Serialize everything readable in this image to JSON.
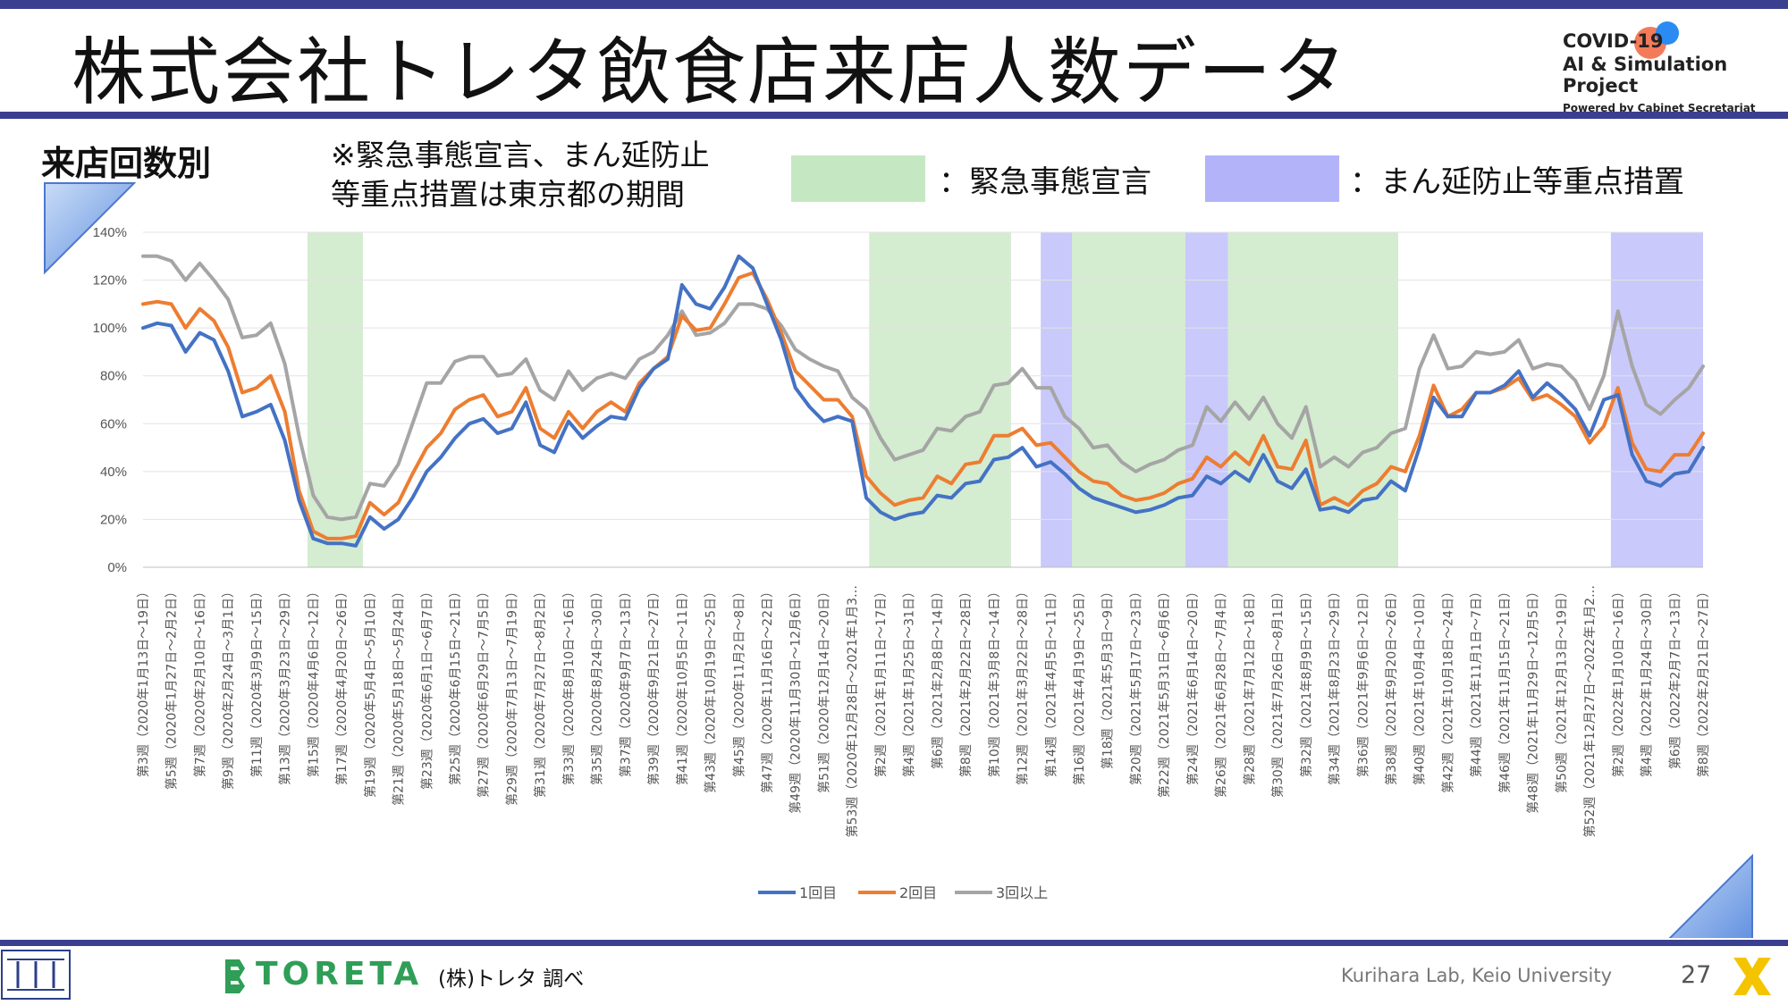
{
  "header": {
    "title": "株式会社トレタ飲食店来店人数データ",
    "badge_line1": "COVID-19",
    "badge_line2": "AI & Simulation Project",
    "badge_line3": "Powered by Cabinet Secretariat"
  },
  "section": {
    "label": "来店回数別",
    "note": "※緊急事態宣言、まん延防止\n等重点措置は東京都の期間",
    "legend_emergency": "：緊急事態宣言",
    "legend_manbo": "：まん延防止等重点措置"
  },
  "colors": {
    "accent": "#3b3f8f",
    "emergency": "#d4ecd0",
    "manbo": "#c9c9fb",
    "series1": "#4472c4",
    "series2": "#ed7d31",
    "series3": "#a5a5a5"
  },
  "chart_data": {
    "type": "line",
    "ylim": [
      0,
      1.4
    ],
    "yticks": [
      "0%",
      "20%",
      "40%",
      "60%",
      "80%",
      "100%",
      "120%",
      "140%"
    ],
    "x_labels": [
      "第3週（2020年1月13日～19日）",
      "第5週（2020年1月27日～2月2日）",
      "第7週（2020年2月10日～16日）",
      "第9週（2020年2月24日～3月1日）",
      "第11週（2020年3月9日～15日）",
      "第13週（2020年3月23日～29日）",
      "第15週（2020年4月6日～12日）",
      "第17週（2020年4月20日～26日）",
      "第19週（2020年5月4日～5月10日）",
      "第21週（2020年5月18日～5月24日）",
      "第23週（2020年6月1日～6月7日）",
      "第25週（2020年6月15日～21日）",
      "第27週（2020年6月29日～7月5日）",
      "第29週（2020年7月13日～7月19日）",
      "第31週（2020年7月27日～8月2日）",
      "第33週（2020年8月10日～16日）",
      "第35週（2020年8月24日～30日）",
      "第37週（2020年9月7日～13日）",
      "第39週（2020年9月21日～27日）",
      "第41週（2020年10月5日～11日）",
      "第43週（2020年10月19日～25日）",
      "第45週（2020年11月2日～8日）",
      "第47週（2020年11月16日～22日）",
      "第49週（2020年11月30日～12月6日）",
      "第51週（2020年12月14日～20日）",
      "第53週（2020年12月28日～2021年1月3…",
      "第2週（2021年1月11日～17日）",
      "第4週（2021年1月25日～31日）",
      "第6週（2021年2月8日～14日）",
      "第8週（2021年2月22日～28日）",
      "第10週（2021年3月8日～14日）",
      "第12週（2021年3月22日～28日）",
      "第14週（2021年4月5日～11日）",
      "第16週（2021年4月19日～25日）",
      "第18週（2021年5月3日～9日）",
      "第20週（2021年5月17日～23日）",
      "第22週（2021年5月31日～6月6日）",
      "第24週（2021年6月14日～20日）",
      "第26週（2021年6月28日～7月4日）",
      "第28週（2021年7月12日～18日）",
      "第30週（2021年7月26日～8月1日）",
      "第32週（2021年8月9日～15日）",
      "第34週（2021年8月23日～29日）",
      "第36週（2021年9月6日～12日）",
      "第38週（2021年9月20日～26日）",
      "第40週（2021年10月4日～10日）",
      "第42週（2021年10月18日～24日）",
      "第44週（2021年11月1日～7日）",
      "第46週（2021年11月15日～21日）",
      "第48週（2021年11月29日～12月5日）",
      "第50週（2021年12月13日～19日）",
      "第52週（2021年12月27日～2022年1月2…",
      "第2週（2022年1月10日～16日）",
      "第4週（2022年1月24日～30日）",
      "第6週（2022年2月7日～13日）",
      "第8週（2022年2月21日～27日）"
    ],
    "legend": [
      "1回目",
      "2回目",
      "3回以上"
    ],
    "series": [
      {
        "name": "1回目",
        "values": [
          1.0,
          1.02,
          1.01,
          0.9,
          0.98,
          0.95,
          0.82,
          0.63,
          0.65,
          0.68,
          0.53,
          0.28,
          0.12,
          0.1,
          0.1,
          0.09,
          0.21,
          0.16,
          0.2,
          0.29,
          0.4,
          0.46,
          0.54,
          0.6,
          0.62,
          0.56,
          0.58,
          0.69,
          0.51,
          0.48,
          0.61,
          0.54,
          0.59,
          0.63,
          0.62,
          0.75,
          0.83,
          0.87,
          1.18,
          1.1,
          1.08,
          1.17,
          1.3,
          1.25,
          1.1,
          0.95,
          0.75,
          0.67,
          0.61,
          0.63,
          0.61,
          0.29,
          0.23,
          0.2,
          0.22,
          0.23,
          0.3,
          0.29,
          0.35,
          0.36,
          0.45,
          0.46,
          0.5,
          0.42,
          0.44,
          0.39,
          0.33,
          0.29,
          0.27,
          0.25,
          0.23,
          0.24,
          0.26,
          0.29,
          0.3,
          0.38,
          0.35,
          0.4,
          0.36,
          0.47,
          0.36,
          0.33,
          0.41,
          0.24,
          0.25,
          0.23,
          0.28,
          0.29,
          0.36,
          0.32,
          0.5,
          0.71,
          0.63,
          0.63,
          0.73,
          0.73,
          0.76,
          0.82,
          0.71,
          0.77,
          0.72,
          0.66,
          0.55,
          0.7,
          0.72,
          0.47,
          0.36,
          0.34,
          0.39,
          0.4,
          0.5
        ]
      },
      {
        "name": "2回目",
        "values": [
          1.1,
          1.11,
          1.1,
          1.0,
          1.08,
          1.03,
          0.92,
          0.73,
          0.75,
          0.8,
          0.65,
          0.32,
          0.15,
          0.12,
          0.12,
          0.13,
          0.27,
          0.22,
          0.27,
          0.39,
          0.5,
          0.56,
          0.66,
          0.7,
          0.72,
          0.63,
          0.65,
          0.75,
          0.58,
          0.54,
          0.65,
          0.58,
          0.65,
          0.69,
          0.65,
          0.77,
          0.83,
          0.88,
          1.05,
          0.99,
          1.0,
          1.1,
          1.21,
          1.23,
          1.12,
          0.98,
          0.82,
          0.76,
          0.7,
          0.7,
          0.63,
          0.38,
          0.31,
          0.26,
          0.28,
          0.29,
          0.38,
          0.35,
          0.43,
          0.44,
          0.55,
          0.55,
          0.58,
          0.51,
          0.52,
          0.46,
          0.4,
          0.36,
          0.35,
          0.3,
          0.28,
          0.29,
          0.31,
          0.35,
          0.37,
          0.46,
          0.42,
          0.48,
          0.43,
          0.55,
          0.42,
          0.41,
          0.53,
          0.26,
          0.29,
          0.26,
          0.32,
          0.35,
          0.42,
          0.4,
          0.55,
          0.76,
          0.63,
          0.66,
          0.73,
          0.73,
          0.75,
          0.79,
          0.7,
          0.72,
          0.68,
          0.63,
          0.52,
          0.59,
          0.75,
          0.52,
          0.41,
          0.4,
          0.47,
          0.47,
          0.56
        ]
      },
      {
        "name": "3回以上",
        "values": [
          1.3,
          1.3,
          1.28,
          1.2,
          1.27,
          1.2,
          1.12,
          0.96,
          0.97,
          1.02,
          0.85,
          0.55,
          0.3,
          0.21,
          0.2,
          0.21,
          0.35,
          0.34,
          0.43,
          0.6,
          0.77,
          0.77,
          0.86,
          0.88,
          0.88,
          0.8,
          0.81,
          0.87,
          0.74,
          0.7,
          0.82,
          0.74,
          0.79,
          0.81,
          0.79,
          0.87,
          0.9,
          0.97,
          1.07,
          0.97,
          0.98,
          1.02,
          1.1,
          1.1,
          1.08,
          1.01,
          0.91,
          0.87,
          0.84,
          0.82,
          0.71,
          0.66,
          0.54,
          0.45,
          0.47,
          0.49,
          0.58,
          0.57,
          0.63,
          0.65,
          0.76,
          0.77,
          0.83,
          0.75,
          0.75,
          0.63,
          0.58,
          0.5,
          0.51,
          0.44,
          0.4,
          0.43,
          0.45,
          0.49,
          0.51,
          0.67,
          0.61,
          0.69,
          0.62,
          0.71,
          0.6,
          0.54,
          0.67,
          0.42,
          0.46,
          0.42,
          0.48,
          0.5,
          0.56,
          0.58,
          0.83,
          0.97,
          0.83,
          0.84,
          0.9,
          0.89,
          0.9,
          0.95,
          0.83,
          0.85,
          0.84,
          0.78,
          0.66,
          0.8,
          1.07,
          0.84,
          0.68,
          0.64,
          0.7,
          0.75,
          0.84
        ]
      }
    ],
    "shaded_periods": [
      {
        "type": "緊急事態宣言",
        "start": 11.6,
        "end": 15.5
      },
      {
        "type": "緊急事態宣言",
        "start": 51.2,
        "end": 61.2
      },
      {
        "type": "まん延防止等重点措置",
        "start": 63.3,
        "end": 65.5
      },
      {
        "type": "緊急事態宣言",
        "start": 65.5,
        "end": 73.5
      },
      {
        "type": "まん延防止等重点措置",
        "start": 73.5,
        "end": 76.5
      },
      {
        "type": "緊急事態宣言",
        "start": 76.5,
        "end": 88.5
      },
      {
        "type": "まん延防止等重点措置",
        "start": 103.5,
        "end": 110.0
      }
    ]
  },
  "footer": {
    "brand": "TORETA",
    "source": "(株)トレタ 調べ",
    "lab": "Kurihara Lab, Keio University",
    "page": "27"
  }
}
